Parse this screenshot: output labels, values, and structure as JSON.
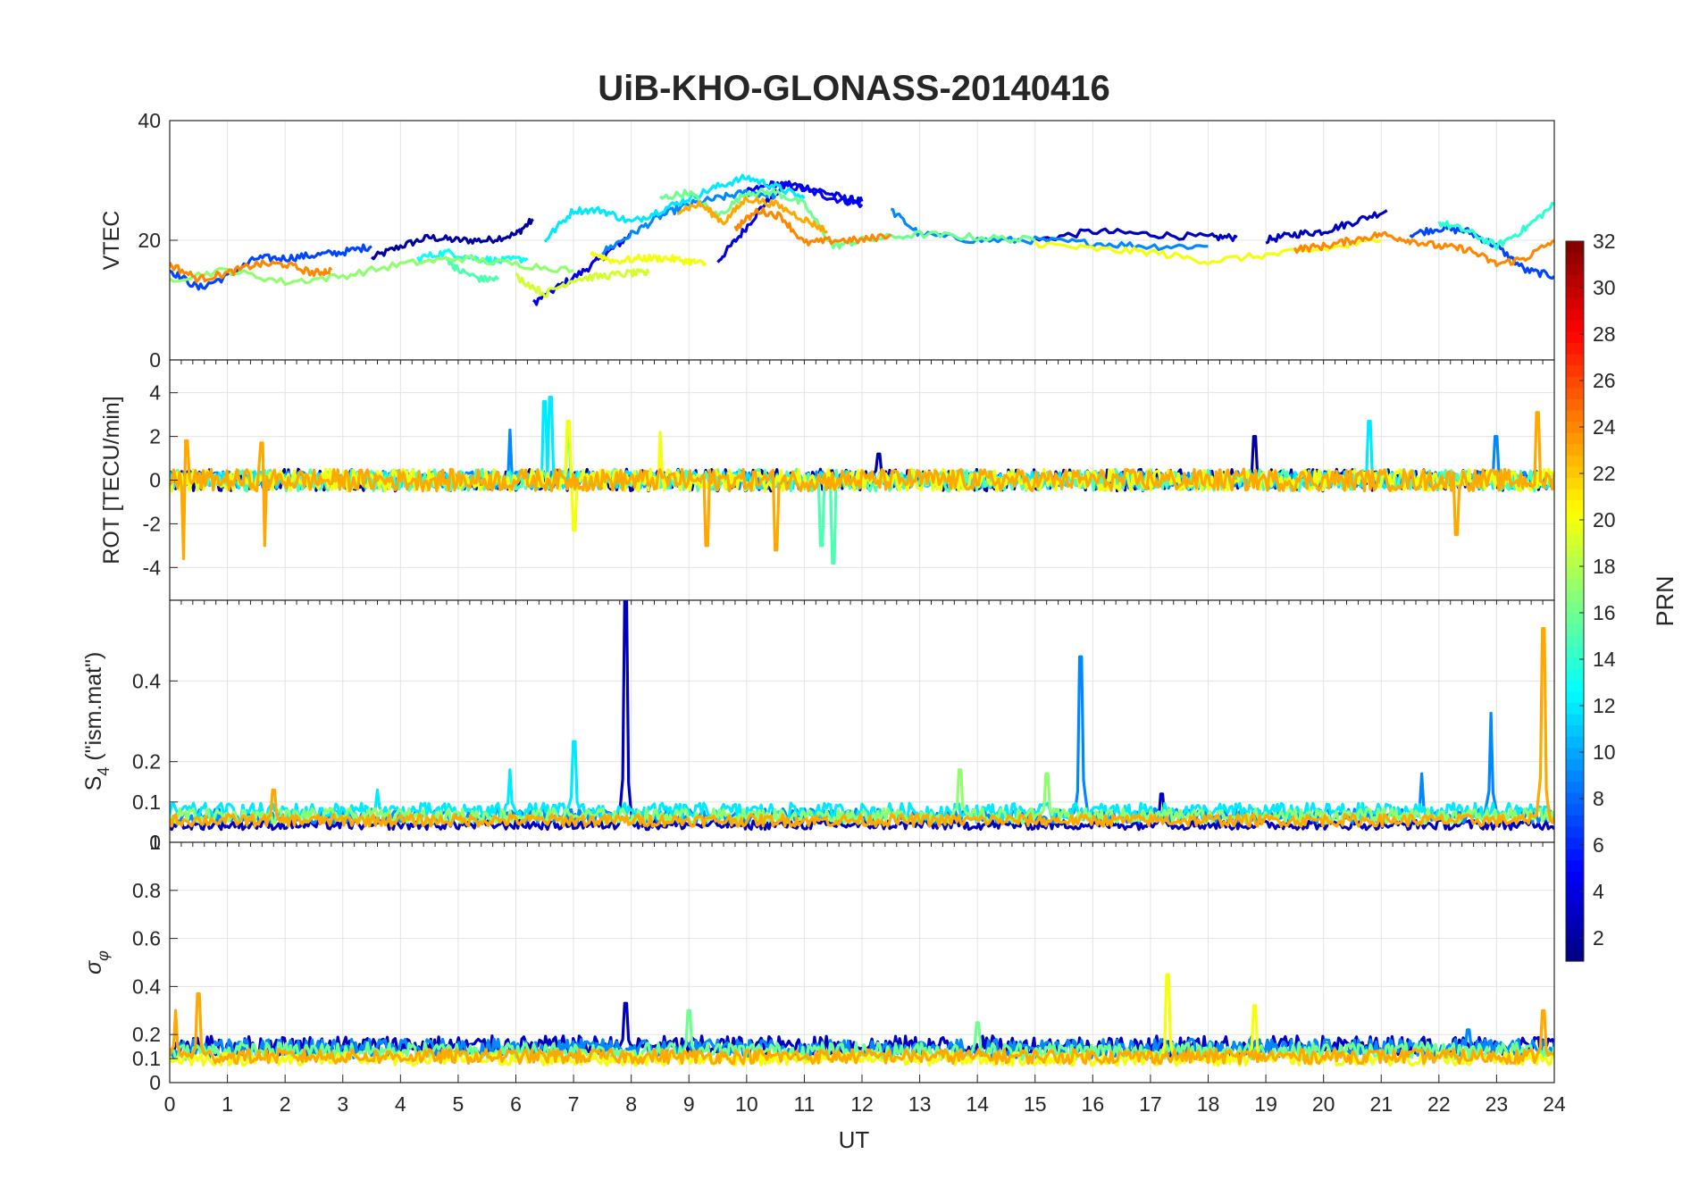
{
  "chart_data": {
    "type": "line",
    "title": "UiB-KHO-GLONASS-20140416",
    "xlabel": "UT",
    "xlim": [
      0,
      24
    ],
    "xticks": [
      0,
      1,
      2,
      3,
      4,
      5,
      6,
      7,
      8,
      9,
      10,
      11,
      12,
      13,
      14,
      15,
      16,
      17,
      18,
      19,
      20,
      21,
      22,
      23,
      24
    ],
    "grid": true,
    "colorbar": {
      "label": "PRN",
      "colormap": "jet",
      "range": [
        1,
        32
      ],
      "ticks": [
        2,
        4,
        6,
        8,
        10,
        12,
        14,
        16,
        18,
        20,
        22,
        24,
        26,
        28,
        30,
        32
      ],
      "placement": "right"
    },
    "panels": [
      {
        "id": "vtec",
        "ylabel": "VTEC",
        "ylim": [
          0,
          40
        ],
        "yticks": [
          0,
          20,
          40
        ],
        "series": [
          {
            "prn": 2,
            "x": [
              3.5,
              4,
              4.5,
              5,
              5.5,
              6,
              6.3
            ],
            "y": [
              17,
              19,
              20.5,
              20,
              20,
              21,
              23.5
            ]
          },
          {
            "prn": 4,
            "x": [
              6.3,
              6.7,
              7.2,
              7.6,
              8.0
            ],
            "y": [
              9.5,
              12,
              15,
              18,
              21
            ]
          },
          {
            "prn": 4,
            "x": [
              9.5,
              9.9,
              10.3,
              10.7,
              11.2,
              11.7,
              12.0
            ],
            "y": [
              16.5,
              21,
              26,
              29.5,
              28.5,
              27,
              26.5
            ]
          },
          {
            "prn": 5,
            "x": [
              10,
              10.5,
              11,
              11.5,
              12
            ],
            "y": [
              28,
              29.5,
              28.5,
              27,
              26
            ]
          },
          {
            "prn": 3,
            "x": [
              15,
              16,
              17,
              18,
              18.5
            ],
            "y": [
              20,
              21.5,
              21,
              20.5,
              20.5
            ]
          },
          {
            "prn": 3,
            "x": [
              19,
              19.5,
              20,
              20.5,
              21.1
            ],
            "y": [
              20,
              21,
              21.5,
              23,
              25
            ]
          },
          {
            "prn": 7,
            "x": [
              0,
              0.5,
              1,
              1.5,
              2,
              2.5,
              3,
              3.5
            ],
            "y": [
              15,
              12,
              14,
              17,
              17,
              17.5,
              18,
              19
            ]
          },
          {
            "prn": 7,
            "x": [
              21.5,
              22,
              22.5,
              23,
              23.5,
              24
            ],
            "y": [
              21,
              22,
              21.5,
              19,
              15,
              14
            ]
          },
          {
            "prn": 9,
            "x": [
              7.5,
              8,
              8.5,
              9,
              9.5,
              10,
              10.5
            ],
            "y": [
              18,
              21,
              24,
              26,
              27,
              28,
              27.5
            ]
          },
          {
            "prn": 9,
            "x": [
              12.5,
              13,
              14,
              15,
              16,
              17,
              18
            ],
            "y": [
              25,
              21,
              20,
              20,
              19.5,
              19,
              19
            ]
          },
          {
            "prn": 12,
            "x": [
              6.5,
              7,
              7.5,
              8,
              8.5,
              9,
              9.5,
              10,
              10.5,
              11
            ],
            "y": [
              20,
              25,
              25,
              23,
              25,
              27,
              29,
              30.5,
              29,
              27
            ]
          },
          {
            "prn": 13,
            "x": [
              4.3,
              4.8,
              5.3,
              5.7,
              6.2
            ],
            "y": [
              17,
              18,
              17,
              16.5,
              17
            ]
          },
          {
            "prn": 14,
            "x": [
              22,
              22.5,
              23,
              23.5,
              24
            ],
            "y": [
              23,
              21.5,
              19,
              22,
              26
            ]
          },
          {
            "prn": 15,
            "x": [
              4.8,
              5,
              5.4,
              5.7
            ],
            "y": [
              17,
              15,
              13.5,
              13.5
            ]
          },
          {
            "prn": 16,
            "x": [
              8.5,
              9,
              9.5,
              10,
              10.5,
              11,
              11.5,
              12,
              13,
              14,
              15
            ],
            "y": [
              27,
              28,
              24,
              28,
              28,
              26,
              19,
              20,
              21,
              20.5,
              20
            ]
          },
          {
            "prn": 17,
            "x": [
              0,
              1,
              2,
              3,
              4,
              5,
              6,
              7
            ],
            "y": [
              13.5,
              15,
              13,
              14,
              16,
              17,
              16,
              15
            ]
          },
          {
            "prn": 19,
            "x": [
              6,
              6.5,
              7,
              7.5,
              8,
              8.3
            ],
            "y": [
              14,
              11,
              13.5,
              14,
              14.5,
              14.5
            ]
          },
          {
            "prn": 20,
            "x": [
              7.3,
              7.7,
              8.2,
              8.6,
              9.0,
              9.3
            ],
            "y": [
              18,
              16.5,
              17,
              17,
              16.5,
              16
            ]
          },
          {
            "prn": 20,
            "x": [
              15,
              16,
              17,
              18,
              19,
              20,
              21
            ],
            "y": [
              19.5,
              18.5,
              18,
              16.5,
              17.5,
              18.5,
              20
            ]
          },
          {
            "prn": 23,
            "x": [
              8.8,
              9.2,
              9.6,
              10,
              10.5,
              11,
              11.4
            ],
            "y": [
              25,
              26,
              23,
              27,
              26,
              23.5,
              21.5
            ]
          },
          {
            "prn": 24,
            "x": [
              0,
              0.5,
              1,
              1.5,
              2,
              2.5,
              2.8
            ],
            "y": [
              16,
              13.5,
              14.5,
              16,
              16,
              14.5,
              15
            ]
          },
          {
            "prn": 24,
            "x": [
              9.8,
              10.2,
              10.6,
              11,
              11.5,
              12,
              12.5
            ],
            "y": [
              22,
              25,
              24,
              19.5,
              20,
              20,
              21
            ]
          },
          {
            "prn": 24,
            "x": [
              19.5,
              20,
              20.5,
              21,
              21.5,
              22,
              22.5,
              23,
              23.5,
              24
            ],
            "y": [
              18.5,
              19,
              20,
              21,
              20,
              19,
              18.5,
              16,
              17,
              20
            ]
          }
        ]
      },
      {
        "id": "rot",
        "ylabel": "ROT [TECU/min]",
        "ylim": [
          -5.5,
          5.5
        ],
        "yticks": [
          -4,
          -2,
          0,
          2,
          4
        ],
        "series": [
          {
            "prn": 2,
            "noise": 0.5,
            "x_range": [
              0,
              24
            ],
            "spikes": [
              [
                18.8,
                2.0
              ],
              [
                12.3,
                1.2
              ]
            ]
          },
          {
            "prn": 9,
            "noise": 0.4,
            "x_range": [
              0,
              24
            ],
            "spikes": [
              [
                5.9,
                2.3
              ],
              [
                23.0,
                2.0
              ]
            ]
          },
          {
            "prn": 12,
            "noise": 0.4,
            "x_range": [
              0,
              24
            ],
            "spikes": [
              [
                6.5,
                3.6
              ],
              [
                20.8,
                2.7
              ],
              [
                6.6,
                3.8
              ]
            ]
          },
          {
            "prn": 15,
            "noise": 0.5,
            "x_range": [
              0,
              24
            ],
            "spikes": [
              [
                11.5,
                -3.8
              ],
              [
                6.9,
                2.0
              ],
              [
                11.3,
                -3.0
              ]
            ]
          },
          {
            "prn": 20,
            "noise": 0.5,
            "x_range": [
              0,
              24
            ],
            "spikes": [
              [
                6.9,
                2.7
              ],
              [
                8.5,
                2.2
              ],
              [
                7.0,
                -2.3
              ]
            ]
          },
          {
            "prn": 23,
            "noise": 0.5,
            "x_range": [
              0,
              24
            ],
            "spikes": [
              [
                0.25,
                -3.6
              ],
              [
                1.65,
                -3.0
              ],
              [
                9.3,
                -3.0
              ],
              [
                10.5,
                -3.2
              ],
              [
                22.3,
                -2.5
              ],
              [
                23.7,
                3.1
              ],
              [
                0.3,
                1.8
              ],
              [
                1.6,
                1.7
              ]
            ]
          }
        ]
      },
      {
        "id": "s4",
        "ylabel": "S4 (\"ism.mat\")",
        "ylim": [
          0,
          0.6
        ],
        "yticks": [
          0,
          0.1,
          0.2,
          0.4
        ],
        "series": [
          {
            "prn": 3,
            "base": 0.04,
            "x_range": [
              0,
              24
            ],
            "spikes": [
              [
                7.9,
                0.6
              ],
              [
                17.2,
                0.12
              ]
            ]
          },
          {
            "prn": 9,
            "base": 0.06,
            "x_range": [
              0,
              24
            ],
            "spikes": [
              [
                15.8,
                0.46
              ],
              [
                22.9,
                0.32
              ],
              [
                21.7,
                0.17
              ]
            ]
          },
          {
            "prn": 12,
            "base": 0.07,
            "x_range": [
              0,
              24
            ],
            "spikes": [
              [
                7.0,
                0.25
              ],
              [
                5.9,
                0.18
              ],
              [
                3.6,
                0.13
              ]
            ]
          },
          {
            "prn": 17,
            "base": 0.06,
            "x_range": [
              0,
              24
            ],
            "spikes": [
              [
                13.7,
                0.18
              ],
              [
                15.2,
                0.17
              ]
            ]
          },
          {
            "prn": 23,
            "base": 0.05,
            "x_range": [
              0,
              24
            ],
            "spikes": [
              [
                23.8,
                0.53
              ],
              [
                1.8,
                0.13
              ]
            ]
          }
        ]
      },
      {
        "id": "sigma",
        "ylabel": "σ φ",
        "ylim": [
          0,
          1
        ],
        "yticks": [
          0,
          0.1,
          0.2,
          0.4,
          0.6,
          0.8,
          1
        ],
        "series": [
          {
            "prn": 3,
            "base": 0.14,
            "x_range": [
              0,
              24
            ],
            "spikes": [
              [
                7.9,
                0.33
              ]
            ]
          },
          {
            "prn": 9,
            "base": 0.13,
            "x_range": [
              0,
              24
            ],
            "spikes": [
              [
                22.5,
                0.22
              ]
            ]
          },
          {
            "prn": 16,
            "base": 0.12,
            "x_range": [
              0,
              24
            ],
            "spikes": [
              [
                9.0,
                0.3
              ],
              [
                14.0,
                0.25
              ]
            ]
          },
          {
            "prn": 20,
            "base": 0.09,
            "x_range": [
              0,
              24
            ],
            "spikes": [
              [
                17.3,
                0.45
              ],
              [
                18.8,
                0.32
              ]
            ]
          },
          {
            "prn": 23,
            "base": 0.1,
            "x_range": [
              0,
              24
            ],
            "spikes": [
              [
                0.5,
                0.37
              ],
              [
                0.1,
                0.3
              ],
              [
                23.8,
                0.3
              ]
            ]
          }
        ]
      }
    ]
  }
}
